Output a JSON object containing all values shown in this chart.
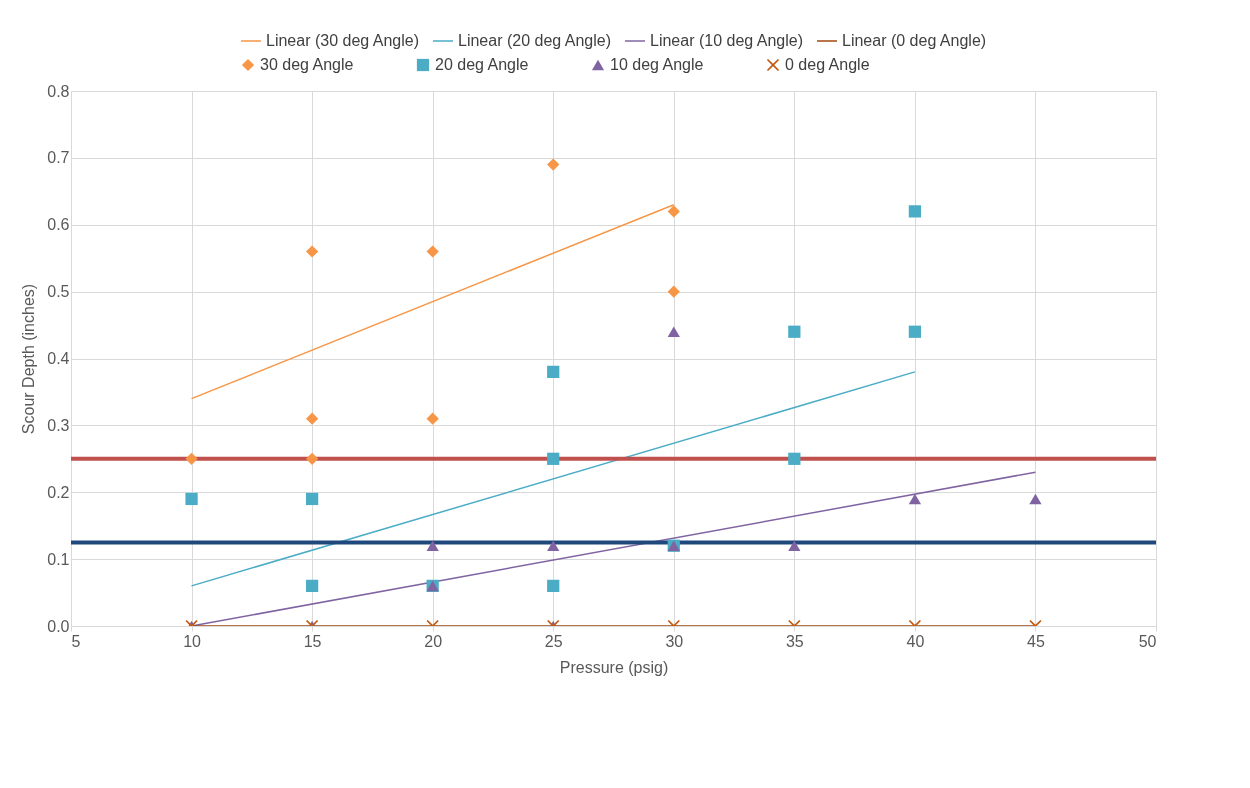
{
  "chart_data": {
    "type": "scatter",
    "xlabel": "Pressure (psig)",
    "ylabel": "Scour Depth (inches)",
    "xlim": [
      5,
      50
    ],
    "xticks": [
      5,
      10,
      15,
      20,
      25,
      30,
      35,
      40,
      45,
      50
    ],
    "ylim": [
      0,
      0.8
    ],
    "yticks": [
      {
        "value": 0,
        "label": "0.0"
      },
      0.1,
      0.2,
      0.3,
      0.4,
      0.5,
      0.6,
      0.7,
      0.8
    ],
    "grid": true,
    "legend": "top",
    "series": [
      {
        "name": "30 deg Angle",
        "marker": "diamond",
        "color": "#f79646",
        "x": [
          10,
          15,
          15,
          15,
          20,
          20,
          25,
          30,
          30
        ],
        "values": [
          0.25,
          0.56,
          0.31,
          0.25,
          0.56,
          0.31,
          0.69,
          0.62,
          0.5
        ]
      },
      {
        "name": "20 deg Angle",
        "marker": "square",
        "color": "#4bacc6",
        "x": [
          10,
          15,
          15,
          20,
          25,
          25,
          25,
          30,
          35,
          35,
          40,
          40
        ],
        "values": [
          0.19,
          0.19,
          0.06,
          0.06,
          0.38,
          0.25,
          0.06,
          0.12,
          0.44,
          0.25,
          0.62,
          0.44
        ]
      },
      {
        "name": "10 deg Angle",
        "marker": "triangle",
        "color": "#8064a2",
        "x": [
          10,
          15,
          20,
          20,
          25,
          25,
          30,
          30,
          35,
          40,
          45
        ],
        "values": [
          0,
          0,
          0.12,
          0.06,
          0.12,
          0,
          0.44,
          0.12,
          0.12,
          0.19,
          0.19
        ]
      },
      {
        "name": "0 deg Angle",
        "marker": "cross",
        "color": "#c55a11",
        "x": [
          10,
          15,
          20,
          25,
          30,
          35,
          40,
          45
        ],
        "values": [
          0,
          0,
          0,
          0,
          0,
          0,
          0,
          0
        ]
      },
      {
        "name": "Linear (30 deg Angle)",
        "type": "line",
        "color": "#f79646",
        "x": [
          10,
          30
        ],
        "values": [
          0.34,
          0.63
        ]
      },
      {
        "name": "Linear (20 deg Angle)",
        "type": "line",
        "color": "#4bacc6",
        "x": [
          10,
          40
        ],
        "values": [
          0.06,
          0.38
        ]
      },
      {
        "name": "Linear (10 deg Angle)",
        "type": "line",
        "color": "#8064a2",
        "x": [
          10,
          45
        ],
        "values": [
          0.0,
          0.23
        ]
      },
      {
        "name": "Linear (0 deg Angle)",
        "type": "line",
        "color": "#9e480e",
        "x": [
          10,
          45
        ],
        "values": [
          0,
          0
        ]
      }
    ],
    "ref_lines": [
      {
        "axis": "y",
        "value": 0.25,
        "color": "#c0504d"
      },
      {
        "axis": "y",
        "value": 0.125,
        "color": "#1f497d"
      }
    ]
  }
}
